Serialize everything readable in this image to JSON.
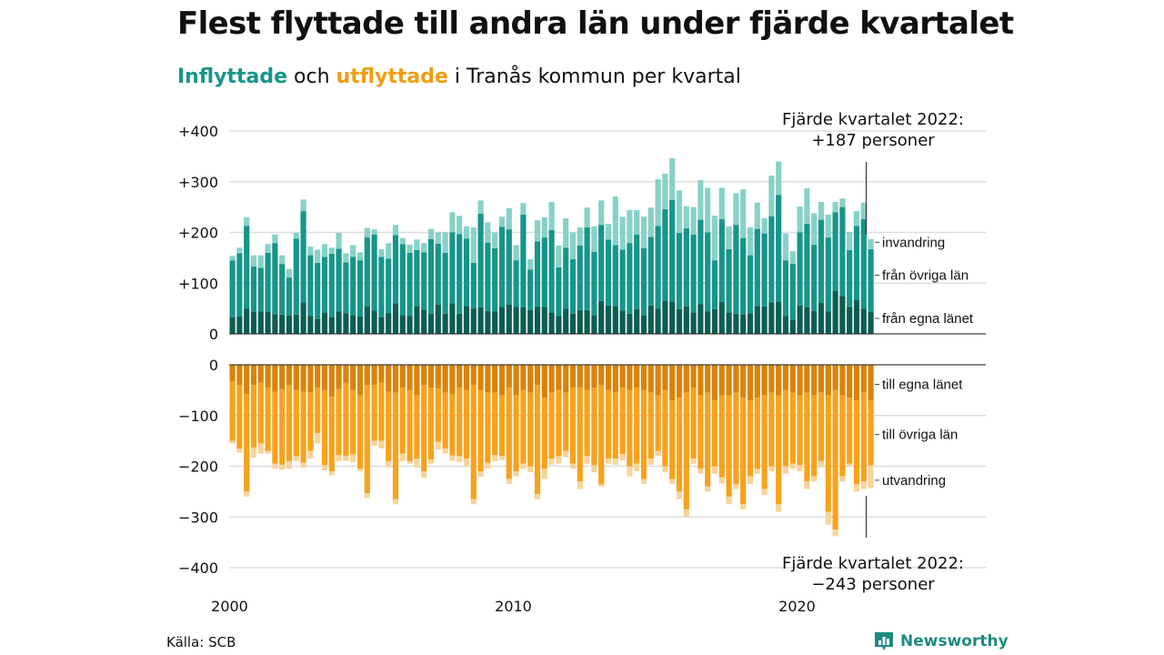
{
  "title": "Flest flyttade till andra län under fjärde kvartalet",
  "subtitle": {
    "in_word": "Inflyttade",
    "mid": " och ",
    "out_word": "utflyttade",
    "rest": " i Tranås kommun per kvartal"
  },
  "source": "Källa: SCB",
  "brand": "Newsworthy",
  "colors": {
    "in_light": "#88d1c7",
    "in_mid": "#17958a",
    "in_dark": "#0d5d52",
    "out_dark": "#d98309",
    "out_mid": "#f7a21c",
    "out_light": "#f7d49b",
    "grid": "#dddddd"
  },
  "chart_data": {
    "type": "bar",
    "stacked": true,
    "period": "quarterly",
    "x_start": 2000,
    "x_ticks": [
      "2000",
      "2010",
      "2020"
    ],
    "top_panel": {
      "y_ticks": [
        "+400",
        "+300",
        "+200",
        "+100",
        "0"
      ],
      "ylim": [
        0,
        400
      ],
      "category_labels": [
        "invandring",
        "från övriga län",
        "från egna länet"
      ],
      "annotation": [
        "Fjärde kvartalet 2022:",
        "+187 personer"
      ],
      "series": [
        {
          "name": "från egna länet",
          "color": "in_dark",
          "values": [
            33,
            34,
            50,
            43,
            44,
            43,
            39,
            38,
            36,
            38,
            62,
            35,
            30,
            42,
            33,
            44,
            41,
            37,
            34,
            55,
            46,
            33,
            41,
            60,
            37,
            35,
            55,
            48,
            40,
            58,
            40,
            60,
            40,
            55,
            50,
            52,
            45,
            44,
            53,
            58,
            53,
            52,
            47,
            54,
            53,
            42,
            35,
            50,
            40,
            47,
            47,
            37,
            65,
            56,
            55,
            46,
            40,
            49,
            36,
            56,
            50,
            66,
            64,
            49,
            54,
            42,
            59,
            44,
            49,
            63,
            42,
            40,
            39,
            41,
            55,
            54,
            62,
            64,
            35,
            27,
            56,
            52,
            45,
            61,
            44,
            85,
            75,
            53,
            67,
            50,
            43
          ]
        },
        {
          "name": "från övriga län",
          "color": "in_mid",
          "values": [
            112,
            125,
            163,
            90,
            86,
            117,
            140,
            100,
            75,
            150,
            180,
            120,
            110,
            110,
            125,
            124,
            100,
            115,
            111,
            135,
            150,
            119,
            107,
            135,
            140,
            125,
            110,
            113,
            147,
            120,
            120,
            140,
            157,
            133,
            90,
            185,
            135,
            125,
            158,
            148,
            92,
            183,
            80,
            128,
            137,
            163,
            96,
            120,
            107,
            127,
            163,
            125,
            150,
            130,
            120,
            120,
            139,
            147,
            133,
            135,
            163,
            180,
            200,
            150,
            154,
            154,
            166,
            156,
            96,
            163,
            125,
            175,
            150,
            114,
            152,
            144,
            170,
            210,
            110,
            111,
            144,
            165,
            131,
            164,
            146,
            155,
            175,
            112,
            146,
            176,
            124
          ]
        },
        {
          "name": "invandring",
          "color": "in_light",
          "values": [
            9,
            11,
            17,
            22,
            25,
            17,
            17,
            17,
            17,
            11,
            23,
            17,
            26,
            25,
            12,
            31,
            18,
            23,
            16,
            19,
            10,
            15,
            31,
            20,
            12,
            16,
            21,
            18,
            20,
            22,
            40,
            40,
            36,
            24,
            70,
            26,
            40,
            31,
            20,
            42,
            30,
            23,
            20,
            42,
            40,
            55,
            43,
            58,
            53,
            36,
            39,
            50,
            48,
            31,
            96,
            65,
            65,
            48,
            62,
            58,
            92,
            70,
            82,
            84,
            44,
            54,
            78,
            88,
            88,
            62,
            45,
            62,
            96,
            55,
            52,
            30,
            80,
            66,
            53,
            25,
            51,
            70,
            62,
            35,
            45,
            20,
            17,
            36,
            29,
            33,
            20
          ]
        }
      ]
    },
    "bottom_panel": {
      "y_ticks": [
        "0",
        "−100",
        "−200",
        "−300",
        "−400"
      ],
      "ylim": [
        -400,
        0
      ],
      "category_labels": [
        "till egna länet",
        "till övriga län",
        "utvandring"
      ],
      "annotation": [
        "Fjärde kvartalet 2022:",
        "−243 personer"
      ],
      "series": [
        {
          "name": "till egna länet",
          "color": "out_dark",
          "values": [
            -33,
            -40,
            -58,
            -40,
            -35,
            -45,
            -53,
            -48,
            -40,
            -50,
            -53,
            -55,
            -45,
            -50,
            -63,
            -48,
            -35,
            -50,
            -60,
            -40,
            -40,
            -35,
            -53,
            -55,
            -45,
            -50,
            -60,
            -40,
            -45,
            -47,
            -55,
            -58,
            -45,
            -50,
            -40,
            -50,
            -55,
            -55,
            -60,
            -45,
            -60,
            -50,
            -55,
            -40,
            -65,
            -55,
            -50,
            -55,
            -45,
            -45,
            -50,
            -45,
            -40,
            -50,
            -55,
            -45,
            -50,
            -45,
            -50,
            -55,
            -60,
            -50,
            -70,
            -65,
            -55,
            -45,
            -60,
            -55,
            -70,
            -60,
            -60,
            -55,
            -65,
            -70,
            -65,
            -60,
            -55,
            -60,
            -50,
            -55,
            -60,
            -55,
            -60,
            -55,
            -60,
            -50,
            -60,
            -65,
            -70,
            -55,
            -70
          ]
        },
        {
          "name": "till övriga län",
          "color": "out_mid",
          "values": [
            -117,
            -125,
            -192,
            -123,
            -120,
            -125,
            -142,
            -149,
            -150,
            -130,
            -140,
            -115,
            -90,
            -148,
            -147,
            -130,
            -145,
            -127,
            -145,
            -213,
            -110,
            -115,
            -137,
            -210,
            -130,
            -140,
            -125,
            -170,
            -142,
            -105,
            -110,
            -121,
            -135,
            -135,
            -225,
            -160,
            -138,
            -123,
            -120,
            -180,
            -150,
            -145,
            -145,
            -215,
            -140,
            -130,
            -130,
            -115,
            -150,
            -185,
            -130,
            -153,
            -195,
            -135,
            -130,
            -131,
            -150,
            -150,
            -175,
            -130,
            -110,
            -150,
            -155,
            -185,
            -230,
            -140,
            -145,
            -185,
            -130,
            -162,
            -200,
            -180,
            -210,
            -150,
            -140,
            -185,
            -145,
            -215,
            -150,
            -140,
            -138,
            -175,
            -160,
            -135,
            -230,
            -275,
            -160,
            -130,
            -165,
            -175,
            -128
          ]
        },
        {
          "name": "utvandring",
          "color": "out_light",
          "values": [
            -5,
            -8,
            -10,
            -20,
            -20,
            -5,
            -10,
            -10,
            -15,
            -10,
            -10,
            -15,
            -20,
            -10,
            -8,
            -12,
            -10,
            -15,
            -5,
            -10,
            -10,
            -15,
            -12,
            -10,
            -15,
            -5,
            -18,
            -13,
            -8,
            -15,
            -10,
            -10,
            -12,
            -15,
            -10,
            -11,
            -12,
            -12,
            -8,
            -10,
            -10,
            -10,
            -12,
            -10,
            -20,
            -12,
            -15,
            -12,
            -10,
            -15,
            -15,
            -14,
            -5,
            -10,
            -12,
            -12,
            -20,
            -15,
            -10,
            -12,
            -10,
            -12,
            -10,
            -15,
            -15,
            -10,
            -10,
            -10,
            -15,
            -12,
            -15,
            -10,
            -10,
            -15,
            -10,
            -12,
            -10,
            -15,
            -15,
            -10,
            -12,
            -15,
            -10,
            -12,
            -25,
            -13,
            -10,
            -5,
            -15,
            -15,
            -45
          ]
        }
      ]
    }
  }
}
